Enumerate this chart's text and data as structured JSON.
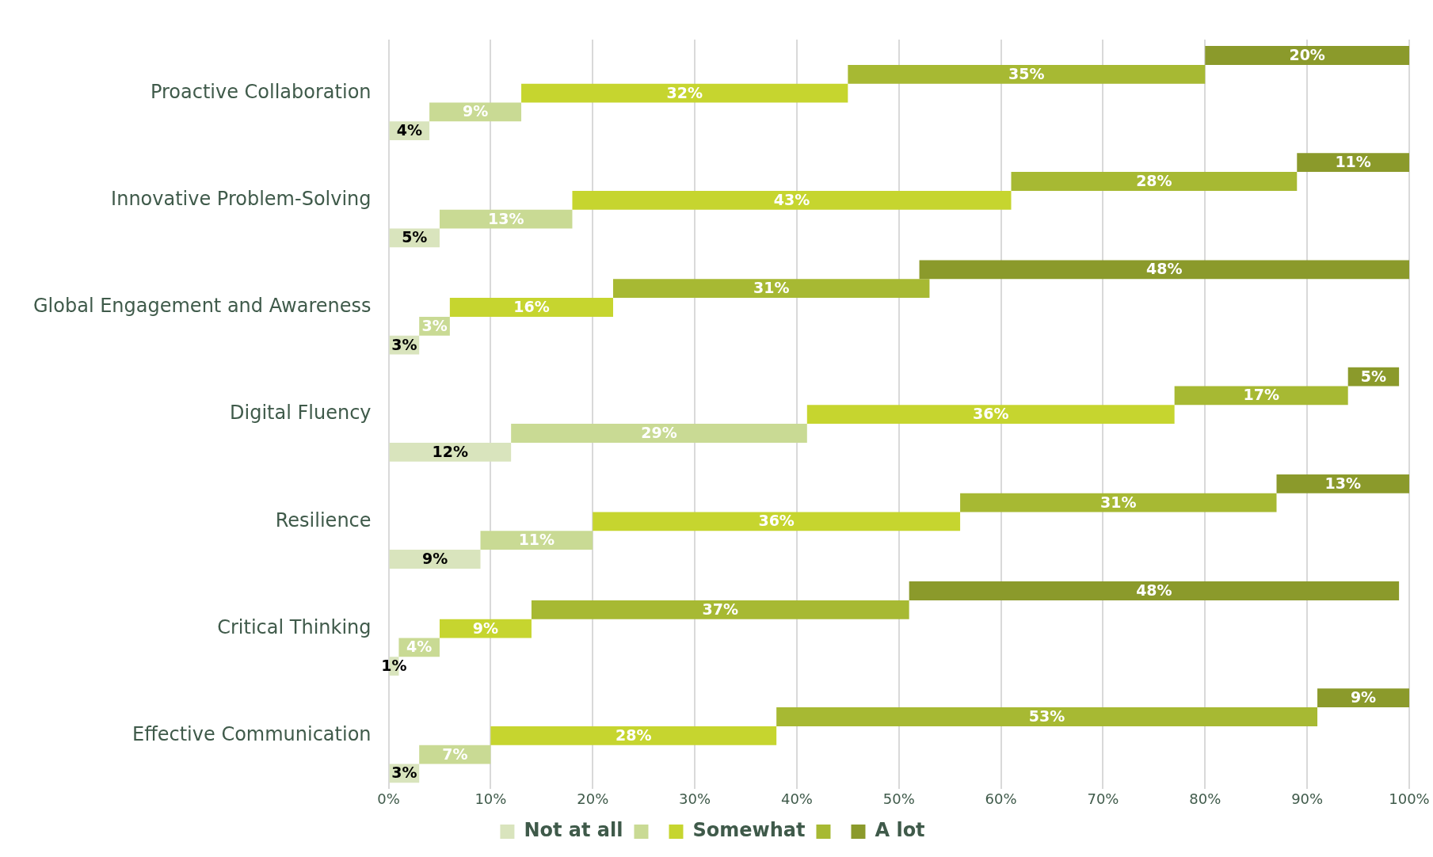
{
  "chart_data": {
    "type": "bar",
    "orientation": "horizontal",
    "categories": [
      "Proactive Collaboration",
      "Innovative Problem-Solving",
      "Global Engagement and Awareness",
      "Digital Fluency",
      "Resilience",
      "Critical Thinking",
      "Effective Communication"
    ],
    "series": [
      {
        "name": "Not at all",
        "color": "#d9e4bd",
        "values": [
          4,
          5,
          3,
          12,
          9,
          1,
          3
        ],
        "base": [
          0,
          0,
          0,
          0,
          0,
          0,
          0
        ],
        "value_labels": [
          "4%",
          "5%",
          "3%",
          "12%",
          "9%",
          "1%",
          "3%"
        ]
      },
      {
        "color": "#c9da94",
        "values": [
          9,
          13,
          3,
          29,
          11,
          4,
          7
        ],
        "base": [
          4,
          5,
          3,
          12,
          9,
          1,
          3
        ],
        "value_labels": [
          "9%",
          "13%",
          "3%",
          "29%",
          "11%",
          "4%",
          "7%"
        ]
      },
      {
        "name": "Somewhat",
        "color": "#c6d52f",
        "values": [
          32,
          43,
          16,
          36,
          36,
          9,
          28
        ],
        "base": [
          13,
          18,
          6,
          41,
          20,
          5,
          10
        ],
        "value_labels": [
          "32%",
          "43%",
          "16%",
          "36%",
          "36%",
          "9%",
          "28%"
        ]
      },
      {
        "color": "#a7b933",
        "values": [
          35,
          28,
          31,
          17,
          31,
          37,
          53
        ],
        "base": [
          45,
          61,
          22,
          77,
          56,
          14,
          38
        ],
        "value_labels": [
          "35%",
          "28%",
          "31%",
          "17%",
          "31%",
          "37%",
          "53%"
        ]
      },
      {
        "name": "A lot",
        "color": "#8b9a2b",
        "values": [
          20,
          11,
          48,
          5,
          13,
          48,
          9
        ],
        "base": [
          80,
          89,
          52,
          94,
          87,
          51,
          91
        ],
        "value_labels": [
          "20%",
          "11%",
          "48%",
          "5%",
          "13%",
          "48%",
          "9%"
        ]
      }
    ],
    "xlim": [
      0,
      100
    ],
    "xticks": [
      {
        "value": 0,
        "label": "0%"
      },
      {
        "value": 10,
        "label": "10%"
      },
      {
        "value": 20,
        "label": "20%"
      },
      {
        "value": 30,
        "label": "30%"
      },
      {
        "value": 40,
        "label": "40%"
      },
      {
        "value": 50,
        "label": "50%"
      },
      {
        "value": 60,
        "label": "60%"
      },
      {
        "value": 70,
        "label": "70%"
      },
      {
        "value": 80,
        "label": "80%"
      },
      {
        "value": 90,
        "label": "90%"
      },
      {
        "value": 100,
        "label": "100%"
      }
    ],
    "grid": "x",
    "legend": "bottom"
  }
}
